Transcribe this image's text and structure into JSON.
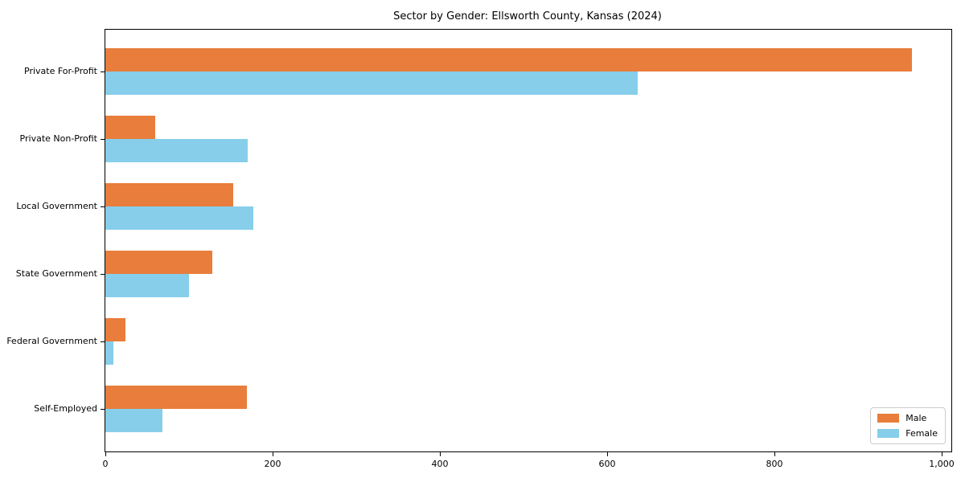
{
  "page": {
    "background_color": "#ffffff",
    "text_color": "#000000"
  },
  "chart_data": {
    "type": "bar",
    "orientation": "horizontal",
    "title": "Sector by Gender: Ellsworth County, Kansas (2024)",
    "categories": [
      "Private For-Profit",
      "Private Non-Profit",
      "Local Government",
      "State Government",
      "Federal Government",
      "Self-Employed"
    ],
    "series": [
      {
        "name": "Male",
        "color": "#E87D3C",
        "values": [
          964,
          60,
          153,
          128,
          24,
          169
        ]
      },
      {
        "name": "Female",
        "color": "#87CEEB",
        "values": [
          637,
          170,
          177,
          100,
          10,
          68
        ]
      }
    ],
    "xlabel": "",
    "ylabel": "",
    "xlim": [
      0,
      1000
    ],
    "xticks": [
      0,
      200,
      400,
      600,
      800,
      1000
    ],
    "xtick_labels": [
      "0",
      "200",
      "400",
      "600",
      "800",
      "1,000"
    ],
    "grid": false,
    "legend_position": "lower right",
    "spines": "box"
  }
}
